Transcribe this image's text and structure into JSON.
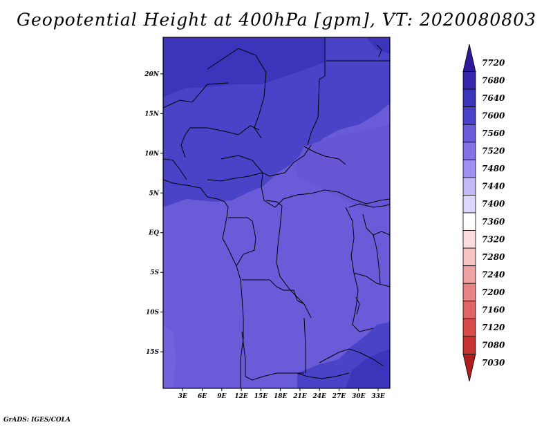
{
  "title": "Geopotential Height at 400hPa [gpm], VT: 2020080803",
  "footer": "GrADS: IGES/COLA",
  "map": {
    "lat_labels": [
      "20N",
      "15N",
      "10N",
      "5N",
      "EQ",
      "5S",
      "10S",
      "15S"
    ],
    "lat_values": [
      20,
      15,
      10,
      5,
      0,
      -5,
      -10,
      -15
    ],
    "lon_labels": [
      "3E",
      "6E",
      "9E",
      "12E",
      "15E",
      "18E",
      "21E",
      "24E",
      "27E",
      "30E",
      "33E"
    ],
    "lon_values": [
      3,
      6,
      9,
      12,
      15,
      18,
      21,
      24,
      27,
      30,
      33
    ],
    "lat_range": [
      -19.6,
      24.6
    ],
    "lon_range": [
      0,
      34.8
    ]
  },
  "colorbar": {
    "labels": [
      "7720",
      "7680",
      "7640",
      "7600",
      "7560",
      "7520",
      "7480",
      "7440",
      "7400",
      "7360",
      "7320",
      "7280",
      "7240",
      "7200",
      "7160",
      "7120",
      "7080",
      "7030"
    ],
    "colors": [
      "#2e1a9a",
      "#3526ab",
      "#3c35bb",
      "#4a43c8",
      "#6a5cd8",
      "#8272e6",
      "#9e90f2",
      "#c2baf8",
      "#dcd8fb",
      "#ffffff",
      "#fadcdc",
      "#f7c2c2",
      "#f0a2a2",
      "#e88383",
      "#e06666",
      "#d84a4a",
      "#c63232",
      "#b01e1e"
    ]
  }
}
